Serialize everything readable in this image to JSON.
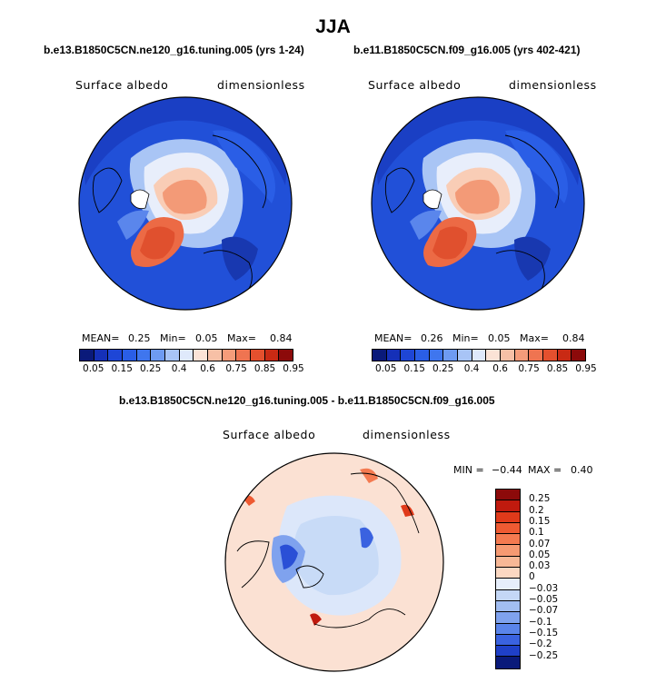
{
  "title": "JJA",
  "panels": [
    {
      "case": "b.e13.B1850C5CN.ne120_g16.tuning.005 (yrs 1-24)",
      "variable": "Surface albedo",
      "units": "dimensionless",
      "stats": {
        "mean_label": "MEAN=",
        "mean": "0.25",
        "min_label": "Min=",
        "min": "0.05",
        "max_label": "Max=",
        "max": "0.84"
      }
    },
    {
      "case": "b.e11.B1850C5CN.f09_g16.005 (yrs 402-421)",
      "variable": "Surface albedo",
      "units": "dimensionless",
      "stats": {
        "mean_label": "MEAN=",
        "mean": "0.26",
        "min_label": "Min=",
        "min": "0.05",
        "max_label": "Max=",
        "max": "0.84"
      }
    }
  ],
  "colorbar_top": {
    "colors": [
      "#0a1a7a",
      "#1530b8",
      "#1e46d6",
      "#2a5ee6",
      "#3f76ee",
      "#6e9bf2",
      "#a8c4f6",
      "#dfe9fb",
      "#fbe3d6",
      "#f7c0a6",
      "#f59c7a",
      "#ef7451",
      "#e4502e",
      "#c92a14",
      "#8c0a0a"
    ],
    "labels": [
      "0.05",
      "0.15",
      "0.25",
      "0.4",
      "0.6",
      "0.75",
      "0.85",
      "0.95"
    ]
  },
  "difference": {
    "title": "b.e13.B1850C5CN.ne120_g16.tuning.005 - b.e11.B1850C5CN.f09_g16.005",
    "variable": "Surface albedo",
    "units": "dimensionless",
    "stats": {
      "min_label": "MIN =",
      "min": "−0.44",
      "max_label": "MAX =",
      "max": "0.40"
    },
    "colorbar": {
      "colors": [
        "#8c0a0a",
        "#c01a0e",
        "#e03a1a",
        "#ee5a32",
        "#f47a50",
        "#f69a72",
        "#f8b896",
        "#fbd8c2",
        "#e6eefb",
        "#c4d7f6",
        "#a2bef2",
        "#7fa2ee",
        "#5a84ea",
        "#3a62e0",
        "#1f40c8",
        "#0a1a7a"
      ],
      "labels": [
        "0.25",
        "0.2",
        "0.15",
        "0.1",
        "0.07",
        "0.05",
        "0.03",
        "0",
        "−0.03",
        "−0.05",
        "−0.07",
        "−0.1",
        "−0.15",
        "−0.2",
        "−0.25"
      ]
    }
  }
}
